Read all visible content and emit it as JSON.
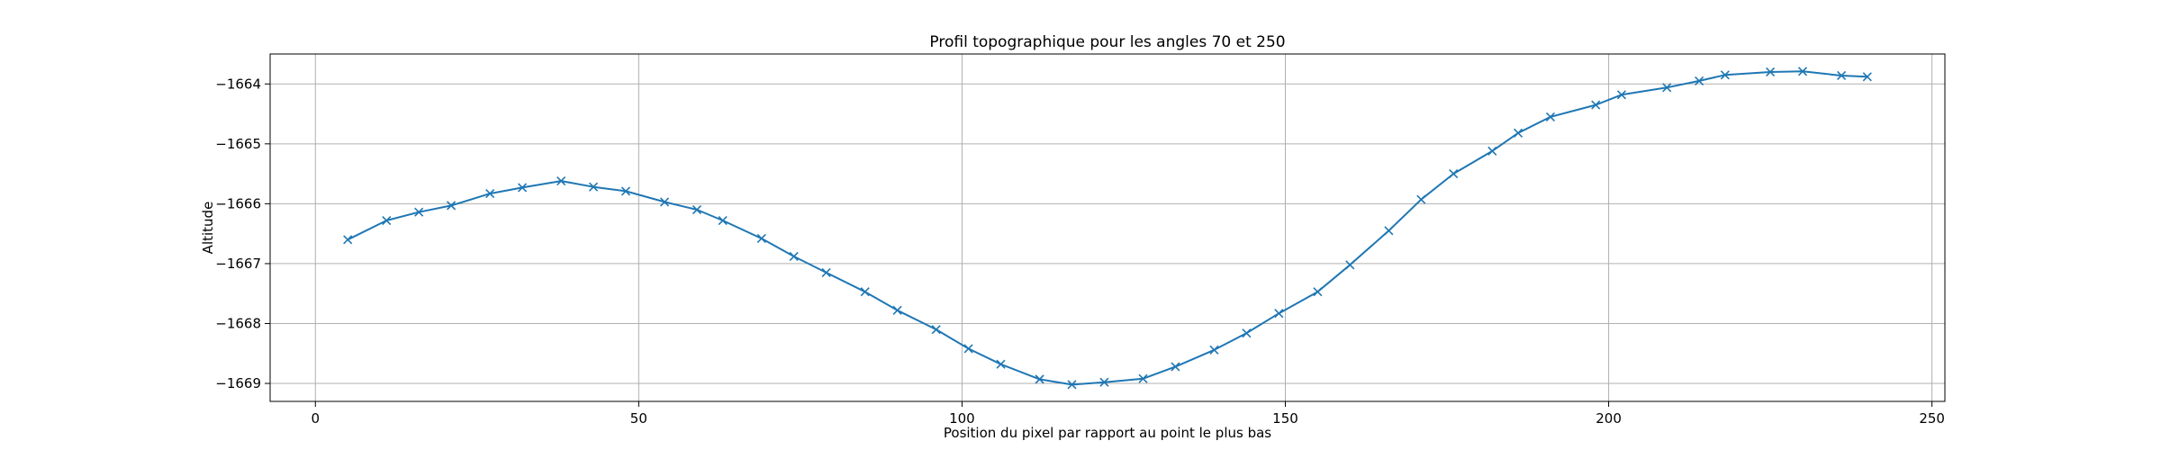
{
  "chart_data": {
    "type": "line",
    "title": "Profil topographique pour les angles 70 et 250",
    "xlabel": "Position du pixel par rapport au point le plus bas",
    "ylabel": "Altitude",
    "xlim": [
      -7,
      252
    ],
    "ylim": [
      -1669.3,
      -1663.5
    ],
    "xticks": [
      0,
      50,
      100,
      150,
      200,
      250
    ],
    "xtick_labels": [
      "0",
      "50",
      "100",
      "150",
      "200",
      "250"
    ],
    "yticks": [
      -1669,
      -1668,
      -1667,
      -1666,
      -1665,
      -1664
    ],
    "ytick_labels": [
      "−1669",
      "−1668",
      "−1667",
      "−1666",
      "−1665",
      "−1664"
    ],
    "grid": true,
    "line_color": "#1f77b4",
    "marker": "x",
    "series": [
      {
        "x": [
          5,
          11,
          16,
          21,
          27,
          32,
          38,
          43,
          48,
          54,
          59,
          63,
          69,
          74,
          79,
          85,
          90,
          96,
          101,
          106,
          112,
          117,
          122,
          128,
          133,
          139,
          144,
          149,
          155,
          160,
          166,
          171,
          176,
          182,
          186,
          191,
          198,
          202,
          209,
          214,
          218,
          225,
          230,
          236,
          240
        ],
        "y": [
          -1666.6,
          -1666.28,
          -1666.14,
          -1666.03,
          -1665.83,
          -1665.73,
          -1665.62,
          -1665.72,
          -1665.79,
          -1665.97,
          -1666.1,
          -1666.28,
          -1666.58,
          -1666.88,
          -1667.15,
          -1667.47,
          -1667.78,
          -1668.1,
          -1668.42,
          -1668.68,
          -1668.93,
          -1669.02,
          -1668.98,
          -1668.92,
          -1668.72,
          -1668.44,
          -1668.16,
          -1667.83,
          -1667.47,
          -1667.02,
          -1666.45,
          -1665.93,
          -1665.5,
          -1665.12,
          -1664.82,
          -1664.55,
          -1664.35,
          -1664.18,
          -1664.06,
          -1663.95,
          -1663.85,
          -1663.8,
          -1663.79,
          -1663.86,
          -1663.88
        ]
      }
    ]
  }
}
